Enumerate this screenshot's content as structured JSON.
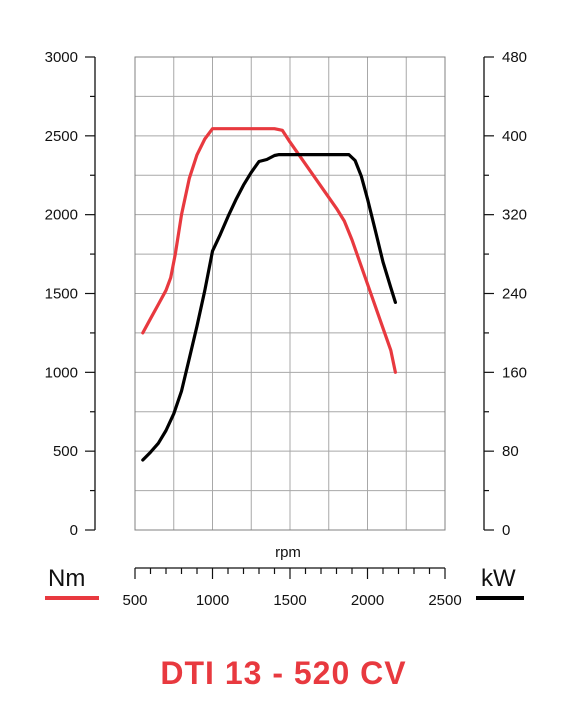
{
  "page": {
    "title": "DTI 13 - 520 CV"
  },
  "legend": {
    "left_label": "Nm",
    "right_label": "kW",
    "left_color": "#e8393f",
    "right_color": "#000000"
  },
  "chart_data": {
    "type": "line",
    "title": "DTI 13 - 520 CV",
    "xlabel": "rpm",
    "x_ticks": [
      "500",
      "1000",
      "1500",
      "2000",
      "2500"
    ],
    "xlim": [
      500,
      2500
    ],
    "y_left": {
      "label": "Nm",
      "ylim": [
        0,
        3000
      ],
      "ticks": [
        "0",
        "500",
        "1000",
        "1500",
        "2000",
        "2500",
        "3000"
      ]
    },
    "y_right": {
      "label": "kW",
      "ylim": [
        0,
        480
      ],
      "ticks": [
        "0",
        "80",
        "160",
        "240",
        "320",
        "400",
        "480"
      ]
    },
    "grid": true,
    "series": [
      {
        "name": "Nm",
        "axis": "left",
        "color": "#e8393f",
        "x": [
          550,
          600,
          650,
          700,
          730,
          760,
          800,
          850,
          900,
          950,
          1000,
          1100,
          1200,
          1300,
          1400,
          1450,
          1500,
          1600,
          1700,
          1800,
          1850,
          1900,
          2000,
          2100,
          2150,
          2180
        ],
        "y": [
          1250,
          1340,
          1430,
          1520,
          1600,
          1750,
          2000,
          2230,
          2380,
          2480,
          2545,
          2545,
          2545,
          2545,
          2545,
          2535,
          2460,
          2320,
          2180,
          2040,
          1960,
          1840,
          1560,
          1280,
          1140,
          1000
        ]
      },
      {
        "name": "kW",
        "axis": "right",
        "color": "#000000",
        "x": [
          550,
          600,
          650,
          700,
          750,
          800,
          850,
          900,
          950,
          1000,
          1050,
          1100,
          1150,
          1200,
          1250,
          1300,
          1350,
          1400,
          1430,
          1500,
          1600,
          1700,
          1800,
          1880,
          1920,
          1960,
          2000,
          2050,
          2100,
          2150,
          2180
        ],
        "y": [
          71,
          79,
          88,
          101,
          118,
          141,
          174,
          207,
          243,
          283,
          300,
          318,
          335,
          350,
          363,
          374,
          376,
          380,
          381,
          381,
          381,
          381,
          381,
          381,
          375,
          359,
          336,
          304,
          272,
          246,
          231
        ]
      }
    ]
  }
}
